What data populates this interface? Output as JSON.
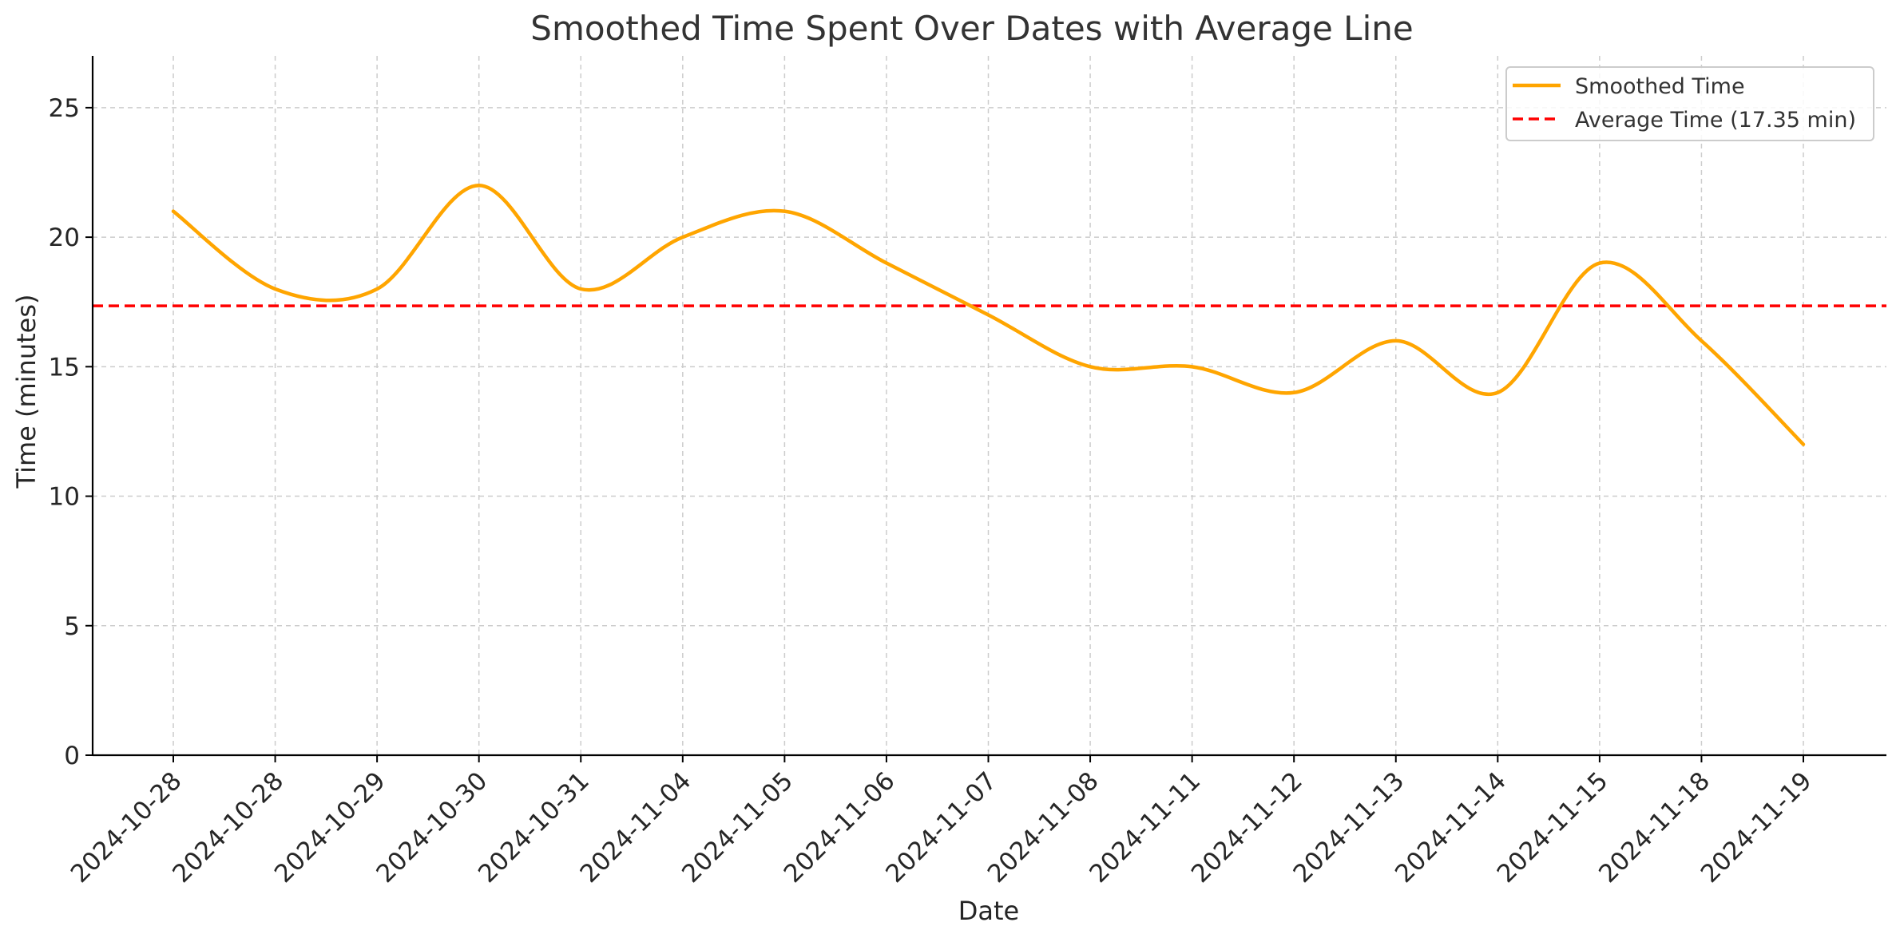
{
  "chart_data": {
    "type": "line",
    "title": "Smoothed Time Spent Over Dates with Average Line",
    "xlabel": "Date",
    "ylabel": "Time (minutes)",
    "categories": [
      "2024-10-28",
      "2024-10-28",
      "2024-10-29",
      "2024-10-30",
      "2024-10-31",
      "2024-11-04",
      "2024-11-05",
      "2024-11-06",
      "2024-11-07",
      "2024-11-08",
      "2024-11-11",
      "2024-11-12",
      "2024-11-13",
      "2024-11-14",
      "2024-11-15",
      "2024-11-18",
      "2024-11-19"
    ],
    "ylim": [
      0,
      27
    ],
    "yticks": [
      0,
      5,
      10,
      15,
      20,
      25
    ],
    "grid": true,
    "legend_position": "top-right",
    "series": [
      {
        "name": "Smoothed Time",
        "color": "#FFA500",
        "style": "solid",
        "values": [
          21,
          18,
          18,
          22,
          18,
          20,
          21,
          19,
          17,
          15,
          15,
          14,
          16,
          14,
          19,
          16,
          12
        ]
      }
    ],
    "average": {
      "name": "Average Time (17.35 min)",
      "value": 17.35,
      "color": "#FF0000",
      "style": "dashed"
    }
  }
}
